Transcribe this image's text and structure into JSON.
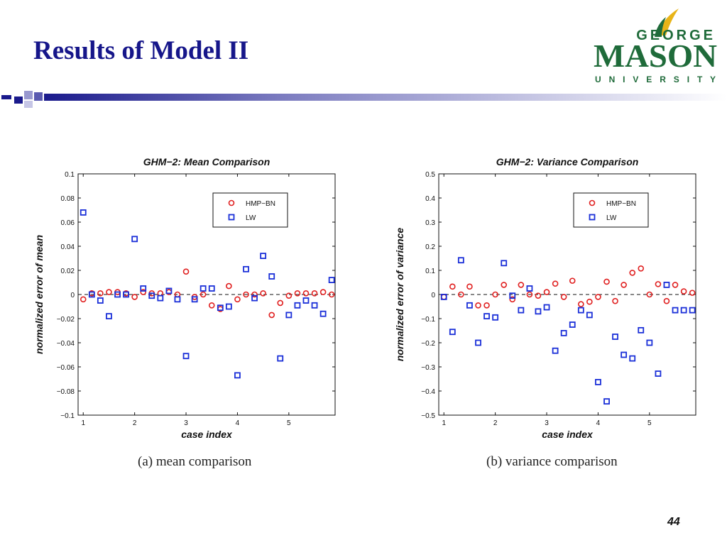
{
  "slide": {
    "title": "Results of Model II",
    "page_number": "44"
  },
  "logo": {
    "line1": "GEORGE",
    "line2": "MASON",
    "line3": "U N I V E R S I T Y",
    "colors": {
      "green": "#1f6b3a",
      "gold": "#e8b418"
    }
  },
  "captions": {
    "left": "(a) mean comparison",
    "right": "(b) variance comparison"
  },
  "colors": {
    "title": "#16168a",
    "hmp_bn": "#e02020",
    "lw": "#1a2fd8",
    "accent_bar": "#1a1a8c"
  },
  "chart_data": [
    {
      "type": "scatter",
      "title": "GHM−2: Mean Comparison",
      "xlabel": "case index",
      "ylabel": "normalized error of mean",
      "xlim": [
        0.9,
        5.9
      ],
      "ylim": [
        -0.1,
        0.1
      ],
      "xticks": [
        1,
        2,
        3,
        4,
        5
      ],
      "xtick_labels": [
        "1",
        "2",
        "3",
        "4",
        "5"
      ],
      "yticks": [
        -0.1,
        -0.08,
        -0.06,
        -0.04,
        -0.02,
        0,
        0.02,
        0.04,
        0.06,
        0.08,
        0.1
      ],
      "ytick_labels": [
        "−0.1",
        "−0.08",
        "−0.06",
        "−0.04",
        "−0.02",
        "0",
        "0.02",
        "0.04",
        "0.06",
        "0.08",
        "0.1"
      ],
      "zero_line": true,
      "grid": false,
      "legend_placement": "top-right",
      "series": [
        {
          "name": "HMP−BN",
          "marker": "circle",
          "x": [
            1,
            1.167,
            1.333,
            1.5,
            1.667,
            1.833,
            2,
            2.167,
            2.333,
            2.5,
            2.667,
            2.833,
            3,
            3.167,
            3.333,
            3.5,
            3.667,
            3.833,
            4,
            4.167,
            4.333,
            4.5,
            4.667,
            4.833,
            5,
            5.167,
            5.333,
            5.5,
            5.667,
            5.833
          ],
          "y": [
            -0.004,
            0.001,
            0.001,
            0.002,
            0.002,
            0.001,
            -0.002,
            0.002,
            0.001,
            0.001,
            0.002,
            0.0,
            0.019,
            -0.002,
            0.0,
            -0.009,
            -0.012,
            0.007,
            -0.004,
            0.0,
            0.0,
            0.001,
            -0.017,
            -0.007,
            -0.001,
            0.001,
            0.001,
            0.001,
            0.002,
            0.0
          ]
        },
        {
          "name": "LW",
          "marker": "square",
          "x": [
            1,
            1.167,
            1.333,
            1.5,
            1.667,
            1.833,
            2,
            2.167,
            2.333,
            2.5,
            2.667,
            2.833,
            3,
            3.167,
            3.333,
            3.5,
            3.667,
            3.833,
            4,
            4.167,
            4.333,
            4.5,
            4.667,
            4.833,
            5,
            5.167,
            5.333,
            5.5,
            5.667,
            5.833
          ],
          "y": [
            0.068,
            0.0,
            -0.005,
            -0.018,
            0.0,
            0.0,
            0.046,
            0.005,
            -0.001,
            -0.003,
            0.003,
            -0.004,
            -0.051,
            -0.004,
            0.005,
            0.005,
            -0.011,
            -0.01,
            -0.067,
            0.021,
            -0.003,
            0.032,
            0.015,
            -0.053,
            -0.017,
            -0.009,
            -0.005,
            -0.009,
            -0.016,
            0.012
          ]
        }
      ]
    },
    {
      "type": "scatter",
      "title": "GHM−2: Variance Comparison",
      "xlabel": "case index",
      "ylabel": "normalized error of variance",
      "xlim": [
        0.9,
        5.9
      ],
      "ylim": [
        -0.5,
        0.5
      ],
      "xticks": [
        1,
        2,
        3,
        4,
        5
      ],
      "xtick_labels": [
        "1",
        "2",
        "3",
        "4",
        "5"
      ],
      "yticks": [
        -0.5,
        -0.4,
        -0.3,
        -0.2,
        -0.1,
        0,
        0.1,
        0.2,
        0.3,
        0.4,
        0.5
      ],
      "ytick_labels": [
        "−0.5",
        "−0.4",
        "−0.3",
        "−0.2",
        "−0.1",
        "0",
        "0.1",
        "0.2",
        "0.3",
        "0.4",
        "0.5"
      ],
      "zero_line": true,
      "grid": false,
      "legend_placement": "top-right",
      "series": [
        {
          "name": "HMP−BN",
          "marker": "circle",
          "x": [
            1,
            1.167,
            1.333,
            1.5,
            1.667,
            1.833,
            2,
            2.167,
            2.333,
            2.5,
            2.667,
            2.833,
            3,
            3.167,
            3.333,
            3.5,
            3.667,
            3.833,
            4,
            4.167,
            4.333,
            4.5,
            4.667,
            4.833,
            5,
            5.167,
            5.333,
            5.5,
            5.667,
            5.833
          ],
          "y": [
            -0.01,
            0.033,
            0.0,
            0.033,
            -0.045,
            -0.045,
            0.0,
            0.04,
            -0.02,
            0.04,
            0.0,
            -0.005,
            0.01,
            0.045,
            -0.01,
            0.057,
            -0.04,
            -0.03,
            -0.01,
            0.053,
            -0.027,
            0.04,
            0.09,
            0.108,
            0.0,
            0.043,
            -0.027,
            0.04,
            0.013,
            0.007
          ]
        },
        {
          "name": "LW",
          "marker": "square",
          "x": [
            1,
            1.167,
            1.333,
            1.5,
            1.667,
            1.833,
            2,
            2.167,
            2.333,
            2.5,
            2.667,
            2.833,
            3,
            3.167,
            3.333,
            3.5,
            3.667,
            3.833,
            4,
            4.167,
            4.333,
            4.5,
            4.667,
            4.833,
            5,
            5.167,
            5.333,
            5.5,
            5.667,
            5.833
          ],
          "y": [
            -0.01,
            -0.155,
            0.142,
            -0.045,
            -0.2,
            -0.09,
            -0.095,
            0.13,
            -0.005,
            -0.065,
            0.025,
            -0.07,
            -0.053,
            -0.233,
            -0.16,
            -0.125,
            -0.065,
            -0.085,
            -0.363,
            -0.443,
            -0.175,
            -0.25,
            -0.265,
            -0.148,
            -0.2,
            -0.328,
            0.04,
            -0.065,
            -0.065,
            -0.065
          ]
        }
      ]
    }
  ]
}
